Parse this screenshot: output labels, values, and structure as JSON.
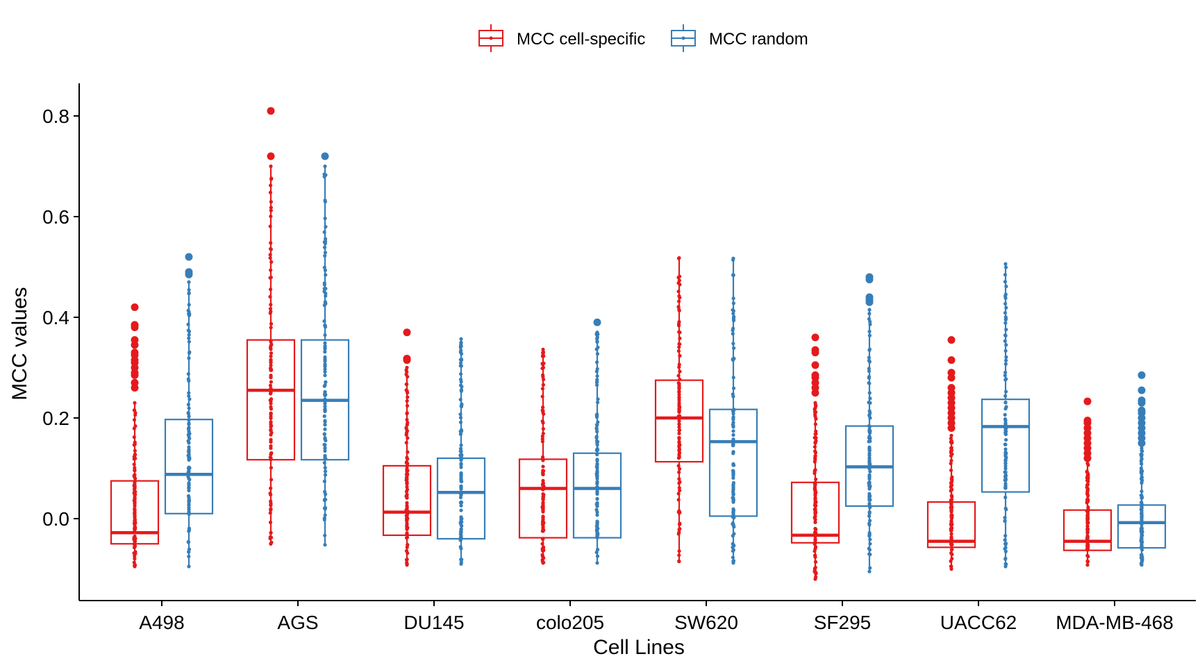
{
  "chart_data": {
    "type": "boxplot",
    "xlabel": "Cell Lines",
    "ylabel": "MCC values",
    "ylim": [
      -0.16,
      0.86
    ],
    "yticks": [
      0.0,
      0.2,
      0.4,
      0.6,
      0.8
    ],
    "ytick_labels": [
      "0.0",
      "0.2",
      "0.4",
      "0.6",
      "0.8"
    ],
    "grid": false,
    "legend_position": "top",
    "categories": [
      "A498",
      "AGS",
      "DU145",
      "colo205",
      "SW620",
      "SF295",
      "UACC62",
      "MDA-MB-468"
    ],
    "series": [
      {
        "name": "MCC cell-specific",
        "color": "#e41a1c",
        "boxes": [
          {
            "min": -0.095,
            "q1": -0.05,
            "median": -0.028,
            "q3": 0.075,
            "max": 0.23,
            "outliers": [
              0.26,
              0.27,
              0.285,
              0.29,
              0.3,
              0.31,
              0.315,
              0.325,
              0.33,
              0.345,
              0.355,
              0.38,
              0.385,
              0.42
            ]
          },
          {
            "min": -0.05,
            "q1": 0.117,
            "median": 0.255,
            "q3": 0.355,
            "max": 0.7,
            "outliers": [
              0.72,
              0.81
            ]
          },
          {
            "min": -0.092,
            "q1": -0.033,
            "median": 0.013,
            "q3": 0.105,
            "max": 0.3,
            "outliers": [
              0.315,
              0.318,
              0.37
            ]
          },
          {
            "min": -0.088,
            "q1": -0.038,
            "median": 0.06,
            "q3": 0.118,
            "max": 0.336,
            "outliers": []
          },
          {
            "min": -0.085,
            "q1": 0.113,
            "median": 0.2,
            "q3": 0.275,
            "max": 0.518,
            "outliers": []
          },
          {
            "min": -0.12,
            "q1": -0.048,
            "median": -0.033,
            "q3": 0.072,
            "max": 0.23,
            "outliers": [
              0.25,
              0.26,
              0.27,
              0.28,
              0.285,
              0.305,
              0.33,
              0.335,
              0.36
            ]
          },
          {
            "min": -0.1,
            "q1": -0.057,
            "median": -0.045,
            "q3": 0.033,
            "max": 0.165,
            "outliers": [
              0.18,
              0.19,
              0.2,
              0.21,
              0.22,
              0.23,
              0.24,
              0.25,
              0.26,
              0.28,
              0.29,
              0.315,
              0.355
            ]
          },
          {
            "min": -0.092,
            "q1": -0.063,
            "median": -0.045,
            "q3": 0.017,
            "max": 0.11,
            "outliers": [
              0.12,
              0.13,
              0.14,
              0.15,
              0.16,
              0.17,
              0.18,
              0.19,
              0.195,
              0.233
            ]
          }
        ]
      },
      {
        "name": "MCC random",
        "color": "#377eb8",
        "boxes": [
          {
            "min": -0.095,
            "q1": 0.01,
            "median": 0.088,
            "q3": 0.197,
            "max": 0.47,
            "outliers": [
              0.485,
              0.49,
              0.52
            ]
          },
          {
            "min": -0.052,
            "q1": 0.117,
            "median": 0.235,
            "q3": 0.355,
            "max": 0.7,
            "outliers": [
              0.72
            ]
          },
          {
            "min": -0.09,
            "q1": -0.04,
            "median": 0.052,
            "q3": 0.12,
            "max": 0.357,
            "outliers": []
          },
          {
            "min": -0.088,
            "q1": -0.038,
            "median": 0.06,
            "q3": 0.13,
            "max": 0.37,
            "outliers": [
              0.39
            ]
          },
          {
            "min": -0.088,
            "q1": 0.005,
            "median": 0.153,
            "q3": 0.217,
            "max": 0.517,
            "outliers": []
          },
          {
            "min": -0.105,
            "q1": 0.025,
            "median": 0.103,
            "q3": 0.184,
            "max": 0.415,
            "outliers": [
              0.43,
              0.435,
              0.44,
              0.475,
              0.48
            ]
          },
          {
            "min": -0.095,
            "q1": 0.053,
            "median": 0.183,
            "q3": 0.237,
            "max": 0.506,
            "outliers": []
          },
          {
            "min": -0.092,
            "q1": -0.058,
            "median": -0.008,
            "q3": 0.027,
            "max": 0.14,
            "outliers": [
              0.15,
              0.16,
              0.17,
              0.18,
              0.19,
              0.2,
              0.21,
              0.215,
              0.23,
              0.235,
              0.255,
              0.285
            ]
          }
        ]
      }
    ]
  }
}
